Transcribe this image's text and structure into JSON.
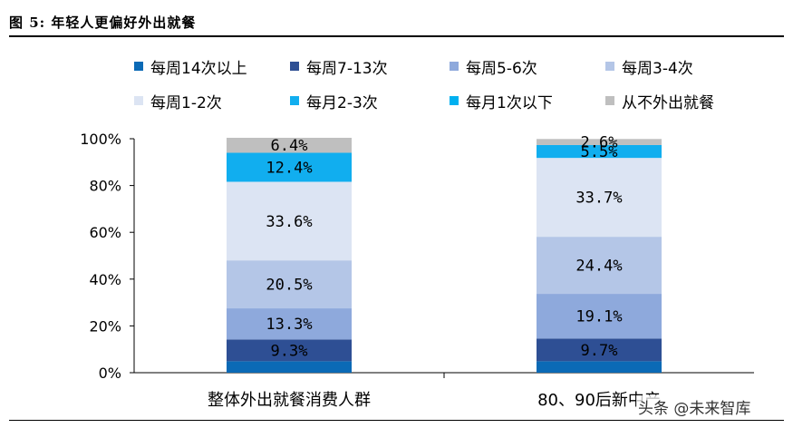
{
  "header": {
    "figure_title": "图  5: 年轻人更偏好外出就餐"
  },
  "watermark": "头条 @未来智库",
  "chart_data": {
    "type": "bar",
    "stacked": true,
    "categories": [
      "整体外出就餐消费人群",
      "80、90后新中产"
    ],
    "ylim": [
      0,
      100
    ],
    "yticks": [
      "0%",
      "20%",
      "40%",
      "60%",
      "80%",
      "100%"
    ],
    "legend_position": "top",
    "series": [
      {
        "name": "每周14次以上",
        "values": [
          4.9,
          4.9
        ],
        "color": "#0b6ab6",
        "labels": [
          "",
          ""
        ]
      },
      {
        "name": "每周7-13次",
        "values": [
          9.3,
          9.7
        ],
        "color": "#2e4f94",
        "labels": [
          "9.3%",
          "9.7%"
        ]
      },
      {
        "name": "每周5-6次",
        "values": [
          13.3,
          19.1
        ],
        "color": "#8ea9dc",
        "labels": [
          "13.3%",
          "19.1%"
        ]
      },
      {
        "name": "每周3-4次",
        "values": [
          20.5,
          24.4
        ],
        "color": "#b4c6e7",
        "labels": [
          "20.5%",
          "24.4%"
        ]
      },
      {
        "name": "每周1-2次",
        "values": [
          33.6,
          33.7
        ],
        "color": "#dce4f3",
        "labels": [
          "33.6%",
          "33.7%"
        ]
      },
      {
        "name": "每月2-3次",
        "values": [
          12.4,
          5.5
        ],
        "color": "#11aeef",
        "labels": [
          "12.4%",
          "5.5%"
        ]
      },
      {
        "name": "每月1次以下",
        "values": [
          0.0,
          0.0
        ],
        "color": "#00b0f0",
        "labels": [
          "",
          ""
        ]
      },
      {
        "name": "从不外出就餐",
        "values": [
          6.4,
          2.6
        ],
        "color": "#bfbfbf",
        "labels": [
          "6.4%",
          "2.6%"
        ]
      }
    ]
  }
}
